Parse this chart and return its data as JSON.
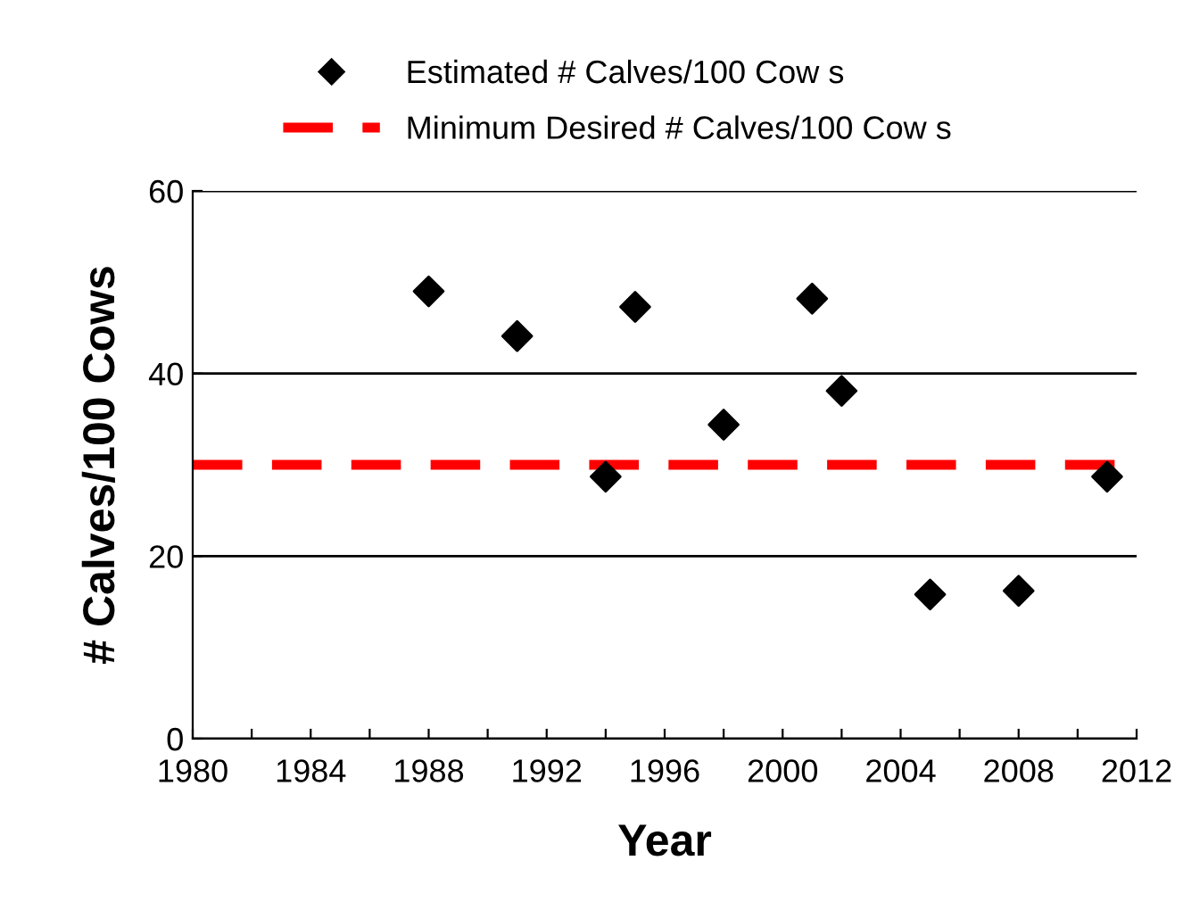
{
  "chart_data": {
    "type": "scatter",
    "xlabel": "Year",
    "ylabel": "# Calves/100 Cows",
    "x": [
      1988,
      1991,
      1994,
      1995,
      1998,
      2001,
      2002,
      2005,
      2008,
      2011
    ],
    "series": [
      {
        "name": "Estimated # Calves/100 Cow s",
        "color": "#000000",
        "values": [
          49.0,
          44.1,
          28.7,
          47.3,
          34.4,
          48.2,
          38.1,
          15.8,
          16.2,
          28.7
        ]
      }
    ],
    "marker": "diamond",
    "ref_lines": [
      {
        "axis": "y",
        "value": 30,
        "label": "Minimum Desired # Calves/100 Cow s",
        "color": "#ff0000",
        "line_style": "dashed"
      }
    ],
    "xlim": [
      1980,
      2012
    ],
    "xticks": [
      1980,
      {
        "value": 1982,
        "label": null
      },
      1984,
      {
        "value": 1986,
        "label": null
      },
      1988,
      {
        "value": 1990,
        "label": null
      },
      1992,
      {
        "value": 1994,
        "label": null
      },
      1996,
      {
        "value": 1998,
        "label": null
      },
      2000,
      {
        "value": 2002,
        "label": null
      },
      2004,
      {
        "value": 2006,
        "label": null
      },
      2008,
      {
        "value": 2010,
        "label": null
      },
      2012
    ],
    "ylim": [
      0,
      60
    ],
    "yticks": [
      0,
      20,
      40,
      60
    ],
    "grid": "y",
    "legend": "top"
  }
}
